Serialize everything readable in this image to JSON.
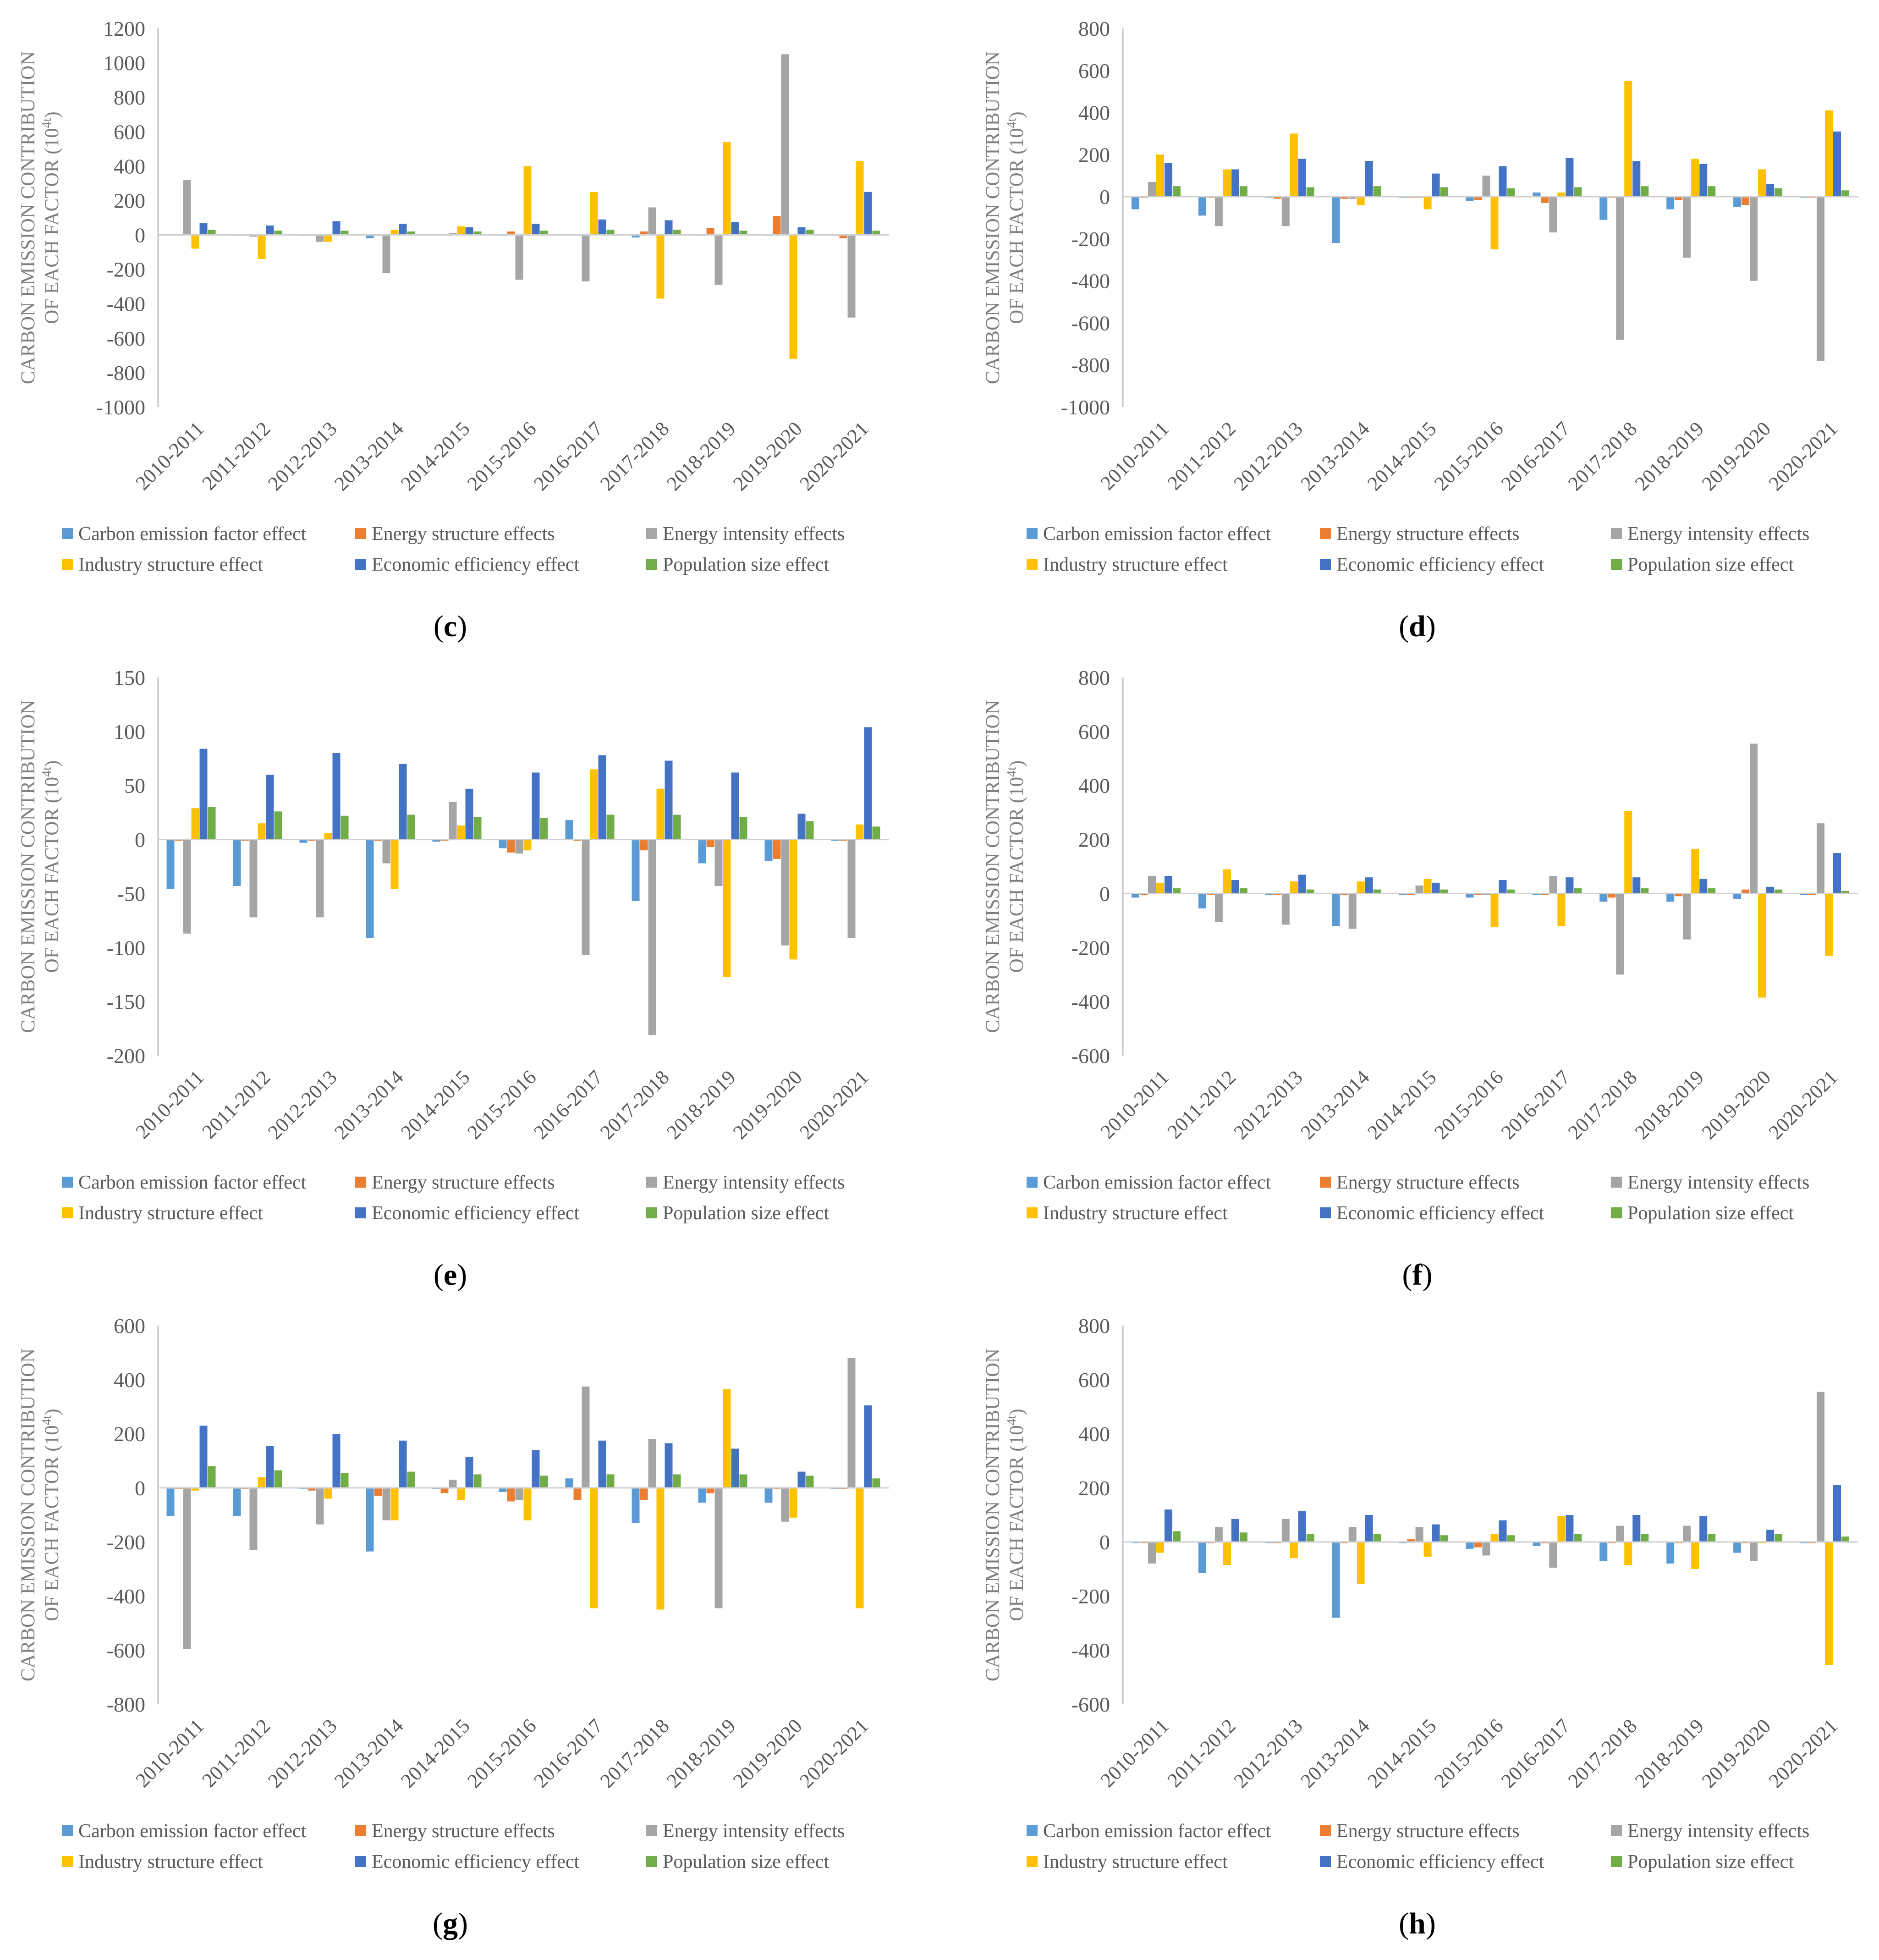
{
  "categories": [
    "2010-2011",
    "2011-2012",
    "2012-2013",
    "2013-2014",
    "2014-2015",
    "2015-2016",
    "2016-2017",
    "2017-2018",
    "2018-2019",
    "2019-2020",
    "2020-2021"
  ],
  "series_styles": [
    {
      "name": "Carbon emission factor effect",
      "color": "#5B9BD5"
    },
    {
      "name": "Energy structure effects",
      "color": "#ED7D31"
    },
    {
      "name": "Energy intensity effects",
      "color": "#A5A5A5"
    },
    {
      "name": "Industry structure effect",
      "color": "#FFC000"
    },
    {
      "name": "Economic efficiency effect",
      "color": "#4472C4"
    },
    {
      "name": "Population size effect",
      "color": "#70AD47"
    }
  ],
  "ylabel_line1": "CARBON EMISSION CONTRIBUTION",
  "ylabel_line2": "OF EACH FACTOR (10",
  "ylabel_sup": "4t",
  "ylabel_close": ")",
  "chart_data": [
    {
      "panel_label": "c",
      "type": "bar",
      "ylim": [
        -1000,
        1200
      ],
      "ystep": 200,
      "categories": [
        "2010-2011",
        "2011-2012",
        "2012-2013",
        "2013-2014",
        "2014-2015",
        "2015-2016",
        "2016-2017",
        "2017-2018",
        "2018-2019",
        "2019-2020",
        "2020-2021"
      ],
      "series": [
        {
          "name": "Carbon emission factor effect",
          "values": [
            5,
            -5,
            -5,
            -20,
            5,
            -5,
            5,
            -15,
            -5,
            -5,
            -5
          ]
        },
        {
          "name": "Energy structure effects",
          "values": [
            5,
            -5,
            -5,
            -5,
            5,
            20,
            5,
            20,
            40,
            110,
            -20
          ]
        },
        {
          "name": "Energy intensity effects",
          "values": [
            320,
            -10,
            -40,
            -220,
            10,
            -260,
            -270,
            160,
            -290,
            1050,
            -480
          ]
        },
        {
          "name": "Industry structure effect",
          "values": [
            -80,
            -140,
            -40,
            30,
            50,
            400,
            250,
            -370,
            540,
            -720,
            430
          ]
        },
        {
          "name": "Economic efficiency effect",
          "values": [
            70,
            55,
            80,
            65,
            45,
            65,
            90,
            85,
            75,
            45,
            250
          ]
        },
        {
          "name": "Population size effect",
          "values": [
            30,
            25,
            25,
            20,
            20,
            25,
            30,
            30,
            25,
            30,
            25
          ]
        }
      ]
    },
    {
      "panel_label": "d",
      "type": "bar",
      "ylim": [
        -1000,
        800
      ],
      "ystep": 200,
      "categories": [
        "2010-2011",
        "2011-2012",
        "2012-2013",
        "2013-2014",
        "2014-2015",
        "2015-2016",
        "2016-2017",
        "2017-2018",
        "2018-2019",
        "2019-2020",
        "2020-2021"
      ],
      "series": [
        {
          "name": "Carbon emission factor effect",
          "values": [
            -60,
            -90,
            -5,
            -220,
            -5,
            -20,
            20,
            -110,
            -60,
            -50,
            -5
          ]
        },
        {
          "name": "Energy structure effects",
          "values": [
            -5,
            -5,
            -10,
            -10,
            -5,
            -15,
            -30,
            -5,
            -15,
            -40,
            -5
          ]
        },
        {
          "name": "Energy intensity effects",
          "values": [
            70,
            -140,
            -140,
            -10,
            -5,
            100,
            -170,
            -680,
            -290,
            -400,
            -780
          ]
        },
        {
          "name": "Industry structure effect",
          "values": [
            200,
            130,
            300,
            -40,
            -60,
            -250,
            20,
            550,
            180,
            130,
            410
          ]
        },
        {
          "name": "Economic efficiency effect",
          "values": [
            160,
            130,
            180,
            170,
            110,
            145,
            185,
            170,
            155,
            60,
            310
          ]
        },
        {
          "name": "Population size effect",
          "values": [
            50,
            50,
            45,
            50,
            45,
            40,
            45,
            50,
            50,
            40,
            30
          ]
        }
      ]
    },
    {
      "panel_label": "e",
      "type": "bar",
      "ylim": [
        -200,
        150
      ],
      "ystep": 50,
      "categories": [
        "2010-2011",
        "2011-2012",
        "2012-2013",
        "2013-2014",
        "2014-2015",
        "2015-2016",
        "2016-2017",
        "2017-2018",
        "2018-2019",
        "2019-2020",
        "2020-2021"
      ],
      "series": [
        {
          "name": "Carbon emission factor effect",
          "values": [
            -46,
            -43,
            -3,
            -91,
            -2,
            -8,
            18,
            -57,
            -22,
            -20,
            -1
          ]
        },
        {
          "name": "Energy structure effects",
          "values": [
            -1,
            -1,
            -1,
            -1,
            -1,
            -12,
            -1,
            -10,
            -7,
            -18,
            -1
          ]
        },
        {
          "name": "Energy intensity effects",
          "values": [
            -87,
            -72,
            -72,
            -22,
            35,
            -13,
            -107,
            -181,
            -43,
            -98,
            -91
          ]
        },
        {
          "name": "Industry structure effect",
          "values": [
            29,
            15,
            6,
            -46,
            13,
            -10,
            65,
            47,
            -127,
            -111,
            14
          ]
        },
        {
          "name": "Economic efficiency effect",
          "values": [
            84,
            60,
            80,
            70,
            47,
            62,
            78,
            73,
            62,
            24,
            104
          ]
        },
        {
          "name": "Population size effect",
          "values": [
            30,
            26,
            22,
            23,
            21,
            20,
            23,
            23,
            21,
            17,
            12
          ]
        }
      ]
    },
    {
      "panel_label": "f",
      "type": "bar",
      "ylim": [
        -600,
        800
      ],
      "ystep": 200,
      "categories": [
        "2010-2011",
        "2011-2012",
        "2012-2013",
        "2013-2014",
        "2014-2015",
        "2015-2016",
        "2016-2017",
        "2017-2018",
        "2018-2019",
        "2019-2020",
        "2020-2021"
      ],
      "series": [
        {
          "name": "Carbon emission factor effect",
          "values": [
            -15,
            -55,
            -5,
            -120,
            -5,
            -15,
            -5,
            -30,
            -30,
            -20,
            -5
          ]
        },
        {
          "name": "Energy structure effects",
          "values": [
            -5,
            -5,
            -5,
            -5,
            -5,
            -5,
            -5,
            -15,
            -10,
            15,
            -5
          ]
        },
        {
          "name": "Energy intensity effects",
          "values": [
            65,
            -105,
            -115,
            -130,
            30,
            -5,
            65,
            -300,
            -170,
            555,
            260
          ]
        },
        {
          "name": "Industry structure effect",
          "values": [
            40,
            90,
            45,
            45,
            55,
            -125,
            -120,
            305,
            165,
            -385,
            -230
          ]
        },
        {
          "name": "Economic efficiency effect",
          "values": [
            65,
            50,
            70,
            60,
            40,
            50,
            60,
            60,
            55,
            25,
            150
          ]
        },
        {
          "name": "Population size effect",
          "values": [
            20,
            20,
            15,
            15,
            15,
            15,
            20,
            20,
            20,
            15,
            10
          ]
        }
      ]
    },
    {
      "panel_label": "g",
      "type": "bar",
      "ylim": [
        -800,
        600
      ],
      "ystep": 200,
      "categories": [
        "2010-2011",
        "2011-2012",
        "2012-2013",
        "2013-2014",
        "2014-2015",
        "2015-2016",
        "2016-2017",
        "2017-2018",
        "2018-2019",
        "2019-2020",
        "2020-2021"
      ],
      "series": [
        {
          "name": "Carbon emission factor effect",
          "values": [
            -105,
            -105,
            -5,
            -235,
            -5,
            -15,
            35,
            -130,
            -55,
            -55,
            -5
          ]
        },
        {
          "name": "Energy structure effects",
          "values": [
            -5,
            -5,
            -10,
            -30,
            -20,
            -50,
            -45,
            -45,
            -20,
            -5,
            -5
          ]
        },
        {
          "name": "Energy intensity effects",
          "values": [
            -595,
            -230,
            -135,
            -120,
            30,
            -45,
            375,
            180,
            -445,
            -125,
            480
          ]
        },
        {
          "name": "Industry structure effect",
          "values": [
            -10,
            40,
            -40,
            -120,
            -45,
            -120,
            -445,
            -450,
            365,
            -110,
            -445
          ]
        },
        {
          "name": "Economic efficiency effect",
          "values": [
            230,
            155,
            200,
            175,
            115,
            140,
            175,
            165,
            145,
            60,
            305
          ]
        },
        {
          "name": "Population size effect",
          "values": [
            80,
            65,
            55,
            60,
            50,
            45,
            50,
            50,
            50,
            45,
            35
          ]
        }
      ]
    },
    {
      "panel_label": "h",
      "type": "bar",
      "ylim": [
        -600,
        800
      ],
      "ystep": 200,
      "categories": [
        "2010-2011",
        "2011-2012",
        "2012-2013",
        "2013-2014",
        "2014-2015",
        "2015-2016",
        "2016-2017",
        "2017-2018",
        "2018-2019",
        "2019-2020",
        "2020-2021"
      ],
      "series": [
        {
          "name": "Carbon emission factor effect",
          "values": [
            -5,
            -115,
            -5,
            -280,
            -5,
            -25,
            -15,
            -70,
            -80,
            -40,
            -5
          ]
        },
        {
          "name": "Energy structure effects",
          "values": [
            -5,
            -5,
            -5,
            -5,
            10,
            -20,
            -5,
            -5,
            -5,
            -5,
            -5
          ]
        },
        {
          "name": "Energy intensity effects",
          "values": [
            -80,
            55,
            85,
            55,
            55,
            -50,
            -95,
            60,
            60,
            -70,
            555
          ]
        },
        {
          "name": "Industry structure effect",
          "values": [
            -40,
            -85,
            -60,
            -155,
            -55,
            30,
            95,
            -85,
            -100,
            -5,
            -455
          ]
        },
        {
          "name": "Economic efficiency effect",
          "values": [
            120,
            85,
            115,
            100,
            65,
            80,
            100,
            100,
            95,
            45,
            210
          ]
        },
        {
          "name": "Population size effect",
          "values": [
            40,
            35,
            30,
            30,
            25,
            25,
            30,
            30,
            30,
            30,
            20
          ]
        }
      ]
    }
  ]
}
